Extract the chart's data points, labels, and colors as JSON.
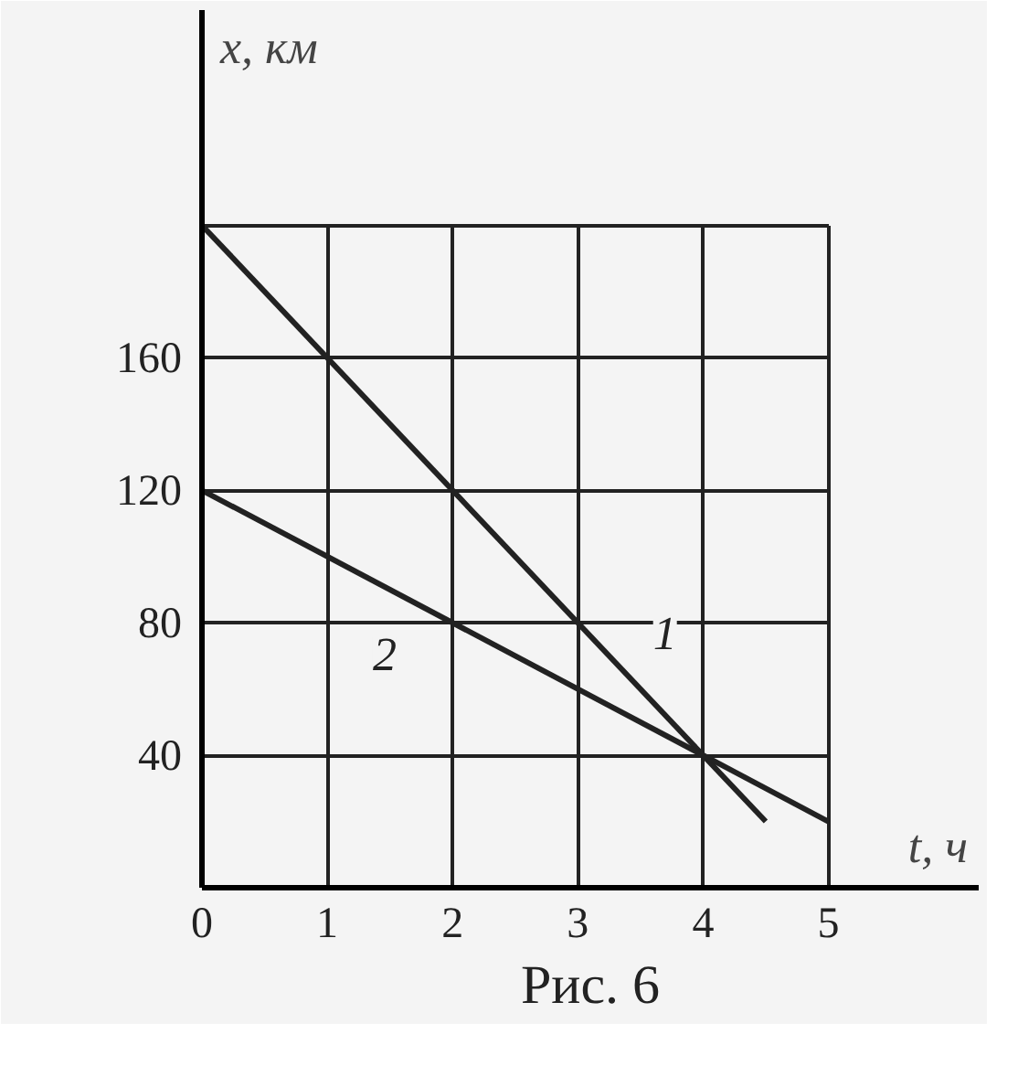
{
  "chart_data": {
    "type": "line",
    "xlabel": "t, ч",
    "ylabel": "x, км",
    "series": [
      {
        "name": "1",
        "color": "#222222",
        "x": [
          0,
          4.5
        ],
        "values": [
          200,
          20
        ]
      },
      {
        "name": "2",
        "color": "#222222",
        "x": [
          0,
          5
        ],
        "values": [
          120,
          20
        ]
      }
    ],
    "xlim": [
      0,
      6.2
    ],
    "ylim": [
      0,
      265
    ],
    "xticks": [
      0,
      1,
      2,
      3,
      4,
      5
    ],
    "yticks": [
      40,
      80,
      120,
      160,
      {
        "value": 200,
        "label": null
      }
    ],
    "grid": true,
    "annotations": [
      "Рис. 6"
    ]
  }
}
